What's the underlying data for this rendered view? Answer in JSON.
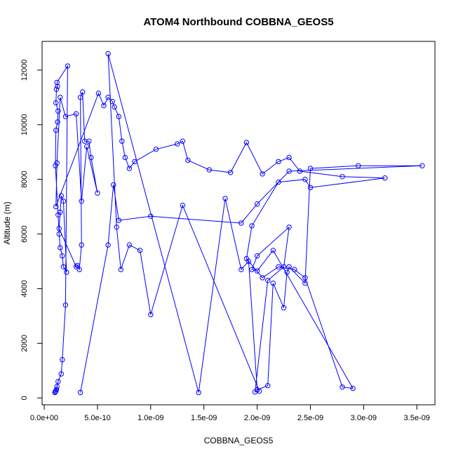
{
  "chart_data": {
    "type": "line",
    "title": "ATOM4 Northbound COBBNA_GEOS5",
    "xlabel": "COBBNA_GEOS5",
    "ylabel": "Altitude (m)",
    "xlim": [
      -2e-11,
      3.67e-09
    ],
    "ylim": [
      -250,
      13050
    ],
    "x_ticks": [
      0,
      5e-10,
      1e-09,
      1.5e-09,
      2e-09,
      2.5e-09,
      3e-09,
      3.5e-09
    ],
    "x_tick_labels": [
      "0.0e+00",
      "5.0e-10",
      "1.0e-09",
      "1.5e-09",
      "2.0e-09",
      "2.5e-09",
      "3.0e-09",
      "3.5e-09"
    ],
    "y_ticks": [
      0,
      2000,
      4000,
      6000,
      8000,
      10000,
      12000
    ],
    "y_tick_labels": [
      "0",
      "2000",
      "4000",
      "6000",
      "8000",
      "10000",
      "12000"
    ],
    "grid": false,
    "series": [
      {
        "color": "#0000ff",
        "marker": "open-circle",
        "x": [
          1e-10,
          1.05e-10,
          1.1e-10,
          1.15e-10,
          1.2e-10,
          1.3e-10,
          1.6e-10,
          1.7e-10,
          2e-10,
          2.2e-10,
          1.2e-10,
          1.25e-10,
          1.15e-10,
          1.1e-10,
          1.3e-10,
          1.25e-10,
          1.1e-10,
          1.05e-10,
          1.3e-10,
          1.4e-10,
          1.5e-10,
          1.7e-10,
          1.8e-10,
          2.1e-10,
          1.8e-10,
          1.6e-10,
          1.5e-10,
          1.4e-10,
          3e-10,
          3.1e-10,
          3.3e-10,
          3.5e-10,
          3.4e-10,
          3.6e-10,
          3.8e-10,
          4.2e-10,
          4.4e-10,
          5e-10,
          4e-10,
          3.5e-10,
          3e-10,
          2e-10,
          1.5e-10,
          1.2e-10,
          1.1e-10,
          5.1e-10,
          5.6e-10,
          6e-10,
          6.4e-10,
          6.6e-10,
          7e-10,
          7.3e-10,
          7.6e-10,
          8e-10,
          8.5e-10,
          1.05e-09,
          1.25e-09,
          1.3e-09,
          1.35e-09,
          1.55e-09,
          1.75e-09,
          1.9e-09,
          2.05e-09,
          2.2e-09,
          2.3e-09,
          2.4e-09,
          2.8e-09,
          3.2e-09,
          2.5e-09,
          2.45e-09,
          2.2e-09,
          1.95e-09,
          1.9e-09,
          2.05e-09,
          2.2e-09,
          2.35e-09,
          2.45e-09,
          2.8e-09,
          2.9e-09,
          2.15e-09,
          2e-09,
          1.95e-09,
          2e-09,
          2.3e-09,
          2.25e-09,
          2.1e-09,
          1.98e-09,
          2.02e-09,
          1.3e-09,
          1e-09,
          9e-10,
          8e-10,
          7.2e-10,
          6.8e-10,
          6e-10,
          1.45e-09,
          1.7e-09,
          1.85e-09,
          1.92e-09,
          2e-09,
          2.1e-09,
          2.15e-09,
          2.25e-09,
          2.28e-09,
          2.3e-09,
          2.45e-09,
          2.5e-09,
          2.95e-09,
          3.55e-09,
          2.3e-09,
          2e-09,
          1.85e-09,
          1e-09,
          7e-10,
          6.5e-10,
          6e-10,
          3.4e-10
        ],
        "y": [
          200,
          230,
          260,
          310,
          420,
          600,
          880,
          1400,
          3400,
          12150,
          11550,
          11400,
          11300,
          10800,
          10500,
          10100,
          9800,
          8500,
          6700,
          6000,
          5500,
          5200,
          4800,
          4600,
          7200,
          7400,
          6800,
          6200,
          4800,
          4850,
          4700,
          5600,
          11000,
          11200,
          9400,
          9400,
          8800,
          7500,
          9200,
          7200,
          10400,
          10300,
          11000,
          8600,
          7000,
          11150,
          10700,
          11000,
          10850,
          10650,
          10300,
          9400,
          8800,
          8400,
          8650,
          9100,
          9300,
          9400,
          8700,
          8350,
          8250,
          9350,
          8200,
          8650,
          8800,
          8300,
          8100,
          8050,
          7700,
          8000,
          7900,
          6300,
          5100,
          4400,
          4800,
          4700,
          4400,
          400,
          350,
          5400,
          4650,
          4700,
          5200,
          6250,
          4800,
          4300,
          220,
          250,
          7050,
          3050,
          5400,
          5600,
          4700,
          6250,
          12600,
          200,
          7300,
          4700,
          5000,
          300,
          450,
          4200,
          3300,
          4600,
          4800,
          4200,
          8400,
          8500,
          8500,
          8300,
          7100,
          6400,
          6650,
          6500,
          7800,
          5600,
          200
        ]
      }
    ]
  }
}
